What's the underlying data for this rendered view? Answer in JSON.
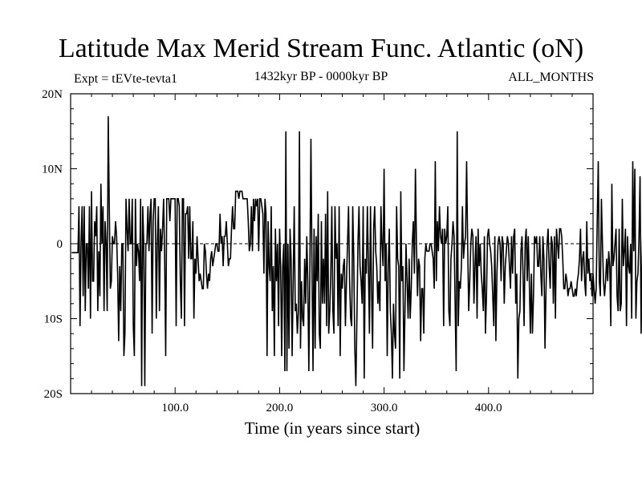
{
  "chart_data": {
    "type": "line",
    "title": "Latitude Max Merid Stream Func. Atlantic (oN)",
    "subtitle_left": "Expt = tEVte-tevta1",
    "subtitle_center": "1432kyr BP - 0000kyr BP",
    "subtitle_right": "ALL_MONTHS",
    "xlabel": "Time (in years since start)",
    "ylabel": "",
    "xlim": [
      0,
      500
    ],
    "ylim": [
      -20,
      20
    ],
    "x_ticks": [
      100,
      200,
      300,
      400
    ],
    "x_tick_labels": [
      "100.0",
      "200.0",
      "300.0",
      "400.0"
    ],
    "y_ticks": [
      -20,
      -10,
      0,
      10,
      20
    ],
    "y_tick_labels": [
      "20S",
      "10S",
      "0",
      "10N",
      "20N"
    ],
    "zero_line": true,
    "series": [
      {
        "name": "Latitude of max meridional streamfunction",
        "x_start": 1,
        "x_step": 1,
        "values": [
          -1.2,
          -1.2,
          -1.2,
          -1.2,
          -1.2,
          -1.2,
          -1.2,
          5,
          -11,
          0,
          5,
          -7,
          5,
          -9,
          0,
          0,
          -6,
          5,
          -10,
          7,
          -5,
          -5,
          3,
          1,
          5,
          -9,
          -1,
          -7,
          8,
          0,
          5,
          -9,
          3,
          0,
          -9,
          17,
          5,
          -6,
          -5,
          1,
          0,
          0,
          3,
          1,
          -4,
          -13,
          -3,
          -9,
          0,
          0,
          -15,
          -12,
          6,
          2,
          -1,
          6,
          0,
          0,
          6,
          -11,
          -15,
          6,
          -3,
          0,
          -1,
          -5,
          6,
          -19,
          5,
          0,
          -19,
          0,
          0,
          5,
          -1,
          4,
          6,
          -12,
          3,
          6,
          6,
          -10,
          0,
          5,
          -9,
          2,
          -1,
          2,
          6,
          -2,
          -15,
          6,
          6,
          6,
          3,
          6,
          6,
          6,
          6,
          6,
          -11,
          6,
          6,
          5,
          -5,
          -10,
          6,
          6,
          -11,
          4,
          4,
          5,
          -2,
          5,
          -2,
          -2,
          3,
          -10,
          -2,
          -4,
          1,
          -2,
          -5,
          -4,
          -5,
          -6,
          -6,
          0,
          -1,
          -4,
          -6,
          -4,
          -5,
          -2,
          -1,
          -3,
          -2,
          -1,
          0,
          0,
          -1,
          -1,
          4,
          0,
          1,
          -3,
          1,
          1,
          3,
          0,
          -3,
          -2,
          -2,
          2,
          5,
          2,
          2,
          7,
          7,
          7,
          6,
          7,
          7,
          7,
          6,
          6,
          6,
          6,
          6,
          3,
          -1,
          0,
          5,
          -1,
          6,
          3,
          6,
          5,
          6,
          -1,
          6,
          6,
          5,
          4,
          -4,
          6,
          4,
          -15,
          3,
          -3,
          -5,
          5,
          -9,
          -3,
          -15,
          2,
          -5,
          0,
          -11,
          2,
          -3,
          -15,
          -3,
          0,
          -17,
          15,
          -17,
          0,
          -14,
          2,
          -2,
          -15,
          -5,
          5,
          -9,
          -8,
          -12,
          -9,
          15,
          -14,
          -5,
          -10,
          -11,
          -2,
          -8,
          1,
          -5,
          -17,
          -3,
          14,
          -3,
          -17,
          2,
          -14,
          1,
          -5,
          4,
          -12,
          -14,
          3,
          -8,
          -2,
          -8,
          4,
          -11,
          7,
          -12,
          -9,
          -4,
          5,
          -9,
          -12,
          5,
          -2,
          0,
          -11,
          5,
          -15,
          -4,
          -6,
          -3,
          -2,
          -11,
          -5,
          0,
          5,
          -5,
          -10,
          -11,
          5,
          -2,
          -14,
          -19,
          -10,
          0,
          5,
          -3,
          -5,
          -8,
          5,
          -18,
          -2,
          -4,
          5,
          -3,
          -12,
          5,
          -6,
          -14,
          2,
          5,
          -1,
          -3,
          -8,
          -5,
          -9,
          5,
          0,
          -3,
          10,
          -5,
          0,
          -15,
          -3,
          2,
          -9,
          -12,
          -18,
          -8,
          -12,
          -14,
          5,
          -2,
          -3,
          -18,
          7,
          -5,
          -3,
          -17,
          -9,
          0,
          -5,
          -10,
          -2,
          -10,
          -6,
          0,
          3,
          -4,
          10,
          0,
          -7,
          -2,
          -3,
          -13,
          -6,
          -6,
          -12,
          -2,
          0,
          -1,
          -1,
          -1,
          0,
          0,
          -1,
          -2,
          -6,
          11,
          -5,
          3,
          -1,
          5,
          1,
          0,
          2,
          -11,
          2,
          0,
          1,
          5,
          -9,
          -11,
          -2,
          0,
          3,
          1,
          -8,
          -17,
          15,
          -11,
          -5,
          -6,
          -3,
          5,
          -2,
          0,
          1,
          11,
          0,
          -9,
          -5,
          0,
          2,
          1,
          -8,
          -3,
          1,
          -10,
          2,
          -3,
          0,
          -4,
          -6,
          -9,
          1,
          -12,
          -7,
          1,
          2,
          0,
          -1,
          -3,
          -7,
          -11,
          1,
          -13,
          -4,
          0,
          1,
          0,
          -5,
          1,
          0,
          -8,
          -3,
          -1,
          1,
          0,
          -3,
          -6,
          1,
          -4,
          1,
          2,
          -8,
          -4,
          -18,
          -10,
          -9,
          -1,
          1,
          -4,
          -11,
          0,
          2,
          -5,
          1,
          -5,
          -12,
          -4,
          -12,
          -7,
          1,
          0,
          1,
          -3,
          -3,
          1,
          -4,
          -7,
          1,
          -2,
          -14,
          -6,
          0,
          2,
          -3,
          -6,
          1,
          0,
          -8,
          1,
          -10,
          2,
          0,
          -2,
          2,
          2,
          1,
          -2,
          -6,
          -6,
          -4,
          -5,
          -7,
          -6,
          -6,
          -5,
          -6,
          -7,
          -7,
          -6,
          -7,
          -5,
          -4,
          -2,
          2,
          -5,
          -2,
          -1,
          -5,
          -7,
          3,
          -4,
          -2,
          -5,
          -4,
          -7,
          -4,
          -6,
          -8,
          -6,
          3,
          11,
          -5,
          -7,
          6,
          0,
          -5,
          -7,
          -5,
          -2,
          -5,
          -1,
          -3,
          -11,
          8,
          -3,
          -2,
          0,
          2,
          -7,
          -9,
          2,
          -9,
          -8,
          6,
          -3,
          -1,
          2,
          -11,
          1,
          -3,
          -4,
          0,
          -10,
          11,
          -1,
          10,
          -10,
          -5,
          -4,
          1,
          9,
          -12,
          -2,
          5,
          -8,
          0,
          12,
          5,
          -2,
          -4,
          9,
          -6,
          -3,
          1,
          -4,
          -4,
          -7,
          -2
        ]
      }
    ]
  }
}
